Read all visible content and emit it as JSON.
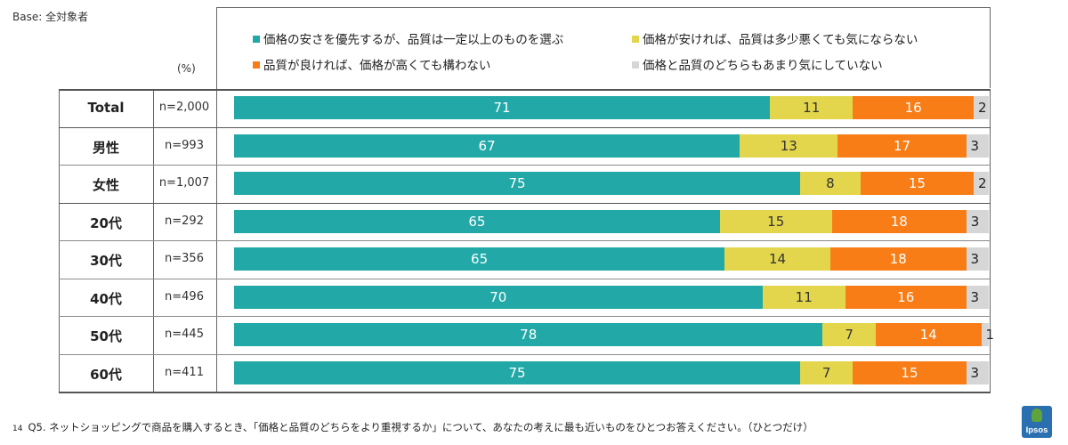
{
  "header": {
    "base_label": "Base: 全対象者",
    "unit_label": "(%)"
  },
  "colors": {
    "teal": "#22a9a7",
    "yellow": "#e3d64c",
    "orange": "#f97d17",
    "gray": "#d6d6d6"
  },
  "chart_data": {
    "type": "bar",
    "stacked": true,
    "orientation": "horizontal",
    "unit": "%",
    "categories": [
      "Total",
      "男性",
      "女性",
      "20代",
      "30代",
      "40代",
      "50代",
      "60代"
    ],
    "sample_sizes": [
      "n=2,000",
      "n=993",
      "n=1,007",
      "n=292",
      "n=356",
      "n=496",
      "n=445",
      "n=411"
    ],
    "series": [
      {
        "name": "価格の安さを優先するが、品質は一定以上のものを選ぶ",
        "color": "#22a9a7",
        "values": [
          71,
          67,
          75,
          65,
          65,
          70,
          78,
          75
        ]
      },
      {
        "name": "価格が安ければ、品質は多少悪くても気にならない",
        "color": "#e3d64c",
        "values": [
          11,
          13,
          8,
          15,
          14,
          11,
          7,
          7
        ]
      },
      {
        "name": "品質が良ければ、価格が高くても構わない",
        "color": "#f97d17",
        "values": [
          16,
          17,
          15,
          18,
          18,
          16,
          14,
          15
        ]
      },
      {
        "name": "価格と品質のどちらもあまり気にしていない",
        "color": "#d6d6d6",
        "values": [
          2,
          3,
          2,
          3,
          3,
          3,
          1,
          3
        ]
      }
    ],
    "legend_order": [
      0,
      1,
      2,
      3
    ],
    "legend_position": "top"
  },
  "footnote": {
    "page": "14",
    "text": "Q5. ネットショッピングで商品を購入するとき、「価格と品質のどちらをより重視するか」について、あなたの考えに最も近いものをひとつお答えください。（ひとつだけ）"
  },
  "logo": {
    "text": "Ipsos"
  }
}
